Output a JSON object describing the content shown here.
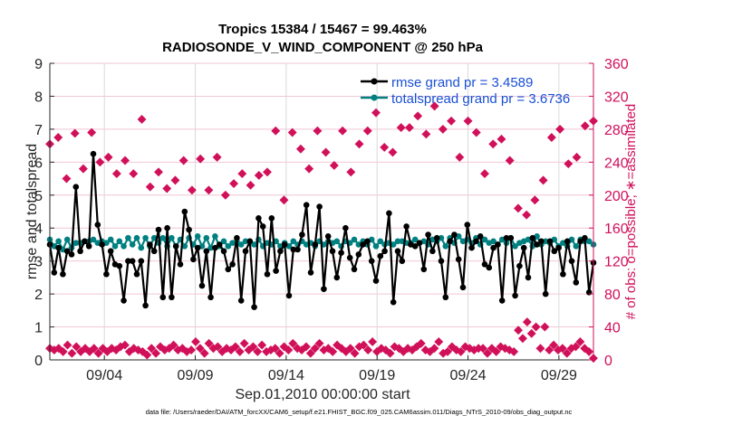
{
  "chart_data": {
    "type": "line",
    "title": "Tropics 15384 / 15467 = 99.463%",
    "subtitle": "RADIOSONDE_V_WIND_COMPONENT @ 250 hPa",
    "xlabel": "Sep.01,2010 00:00:00 start",
    "ylabel": "rmse and totalspread",
    "ylabel_right": "# of obs: o=possible; ∗=assimilated",
    "footnote": "data file: /Users/raeder/DAI/ATM_forcXX/CAM6_setup/f.e21.FHIST_BGC.f09_025.CAM6assim.011/Diags_NTrS_2010-09/obs_diag_output.nc",
    "x_unit": "days since Sep.01,2010 00:00",
    "xlim": [
      0,
      30
    ],
    "ylim": [
      0,
      9
    ],
    "ylim_right": [
      0,
      360
    ],
    "xticks": [
      {
        "day": 3,
        "label": "09/04"
      },
      {
        "day": 8,
        "label": "09/09"
      },
      {
        "day": 13,
        "label": "09/14"
      },
      {
        "day": 18,
        "label": "09/19"
      },
      {
        "day": 23,
        "label": "09/24"
      },
      {
        "day": 28,
        "label": "09/29"
      }
    ],
    "yticks": [
      "0",
      "1",
      "2",
      "3",
      "4",
      "5",
      "6",
      "7",
      "8",
      "9"
    ],
    "yticks_right": [
      "0",
      "40",
      "80",
      "120",
      "160",
      "200",
      "240",
      "280",
      "320",
      "360"
    ],
    "grid": true,
    "legend_position": "top-right",
    "colors": {
      "rmse": "#000000",
      "totalspread": "#008080",
      "obs": "#d1105a",
      "legend_text": "#1a4fd6",
      "grid_h": "#f2c6d6",
      "grid_v": "#d9d9d9"
    },
    "x": [
      0,
      0.5,
      1,
      1.5,
      2,
      2.5,
      3,
      3.5,
      4,
      4.5,
      5,
      5.5,
      6,
      6.5,
      7,
      7.5,
      8,
      8.5,
      9,
      9.5,
      10,
      10.5,
      11,
      11.5,
      12,
      12.5,
      13,
      13.5,
      14,
      14.5,
      15,
      15.5,
      16,
      16.5,
      17,
      17.5,
      18,
      18.5,
      19,
      19.5,
      20,
      20.5,
      21,
      21.5,
      22,
      22.5,
      23,
      23.5,
      24,
      24.5,
      25,
      25.5,
      26,
      26.5,
      27,
      27.5,
      28,
      28.5,
      29,
      29.5
    ],
    "series": [
      {
        "name": "rmse",
        "legend": "rmse grand pr = 3.4589",
        "values": [
          3.5,
          2.65,
          3.4,
          2.6,
          3.3,
          3.2,
          5.25,
          3.3,
          3.6,
          3.45,
          6.25,
          4.1,
          3.5,
          2.6,
          3.3,
          2.9,
          2.85,
          1.8,
          3.0,
          3.0,
          2.6,
          3.0,
          1.65,
          3.5,
          3.3,
          3.95,
          1.9,
          4.0,
          1.9,
          3.45,
          2.9,
          4.5,
          3.95,
          3.05,
          3.4,
          2.25,
          3.3,
          1.9,
          3.4,
          3.5,
          3.3,
          2.75,
          2.9,
          3.7,
          1.8,
          3.3,
          3.6,
          1.6,
          4.3,
          4.05,
          2.6,
          4.3,
          2.7,
          3.3,
          3.5,
          1.95,
          3.35,
          3.35,
          3.8,
          4.7,
          2.65,
          3.5,
          4.65,
          2.15,
          3.75,
          3.3,
          2.5,
          3.25,
          4.0,
          3.1,
          2.75,
          3.2,
          3.5,
          3.6,
          3.0,
          2.4,
          3.15,
          3.3,
          4.45,
          1.75,
          3.3,
          3.0,
          4.05,
          3.5,
          3.45,
          3.55,
          2.75,
          3.8,
          3.3,
          3.7,
          3.0,
          1.9,
          3.6,
          3.8,
          3.05,
          2.2,
          4.1,
          3.4,
          3.6,
          3.75,
          2.9,
          2.8,
          3.4,
          3.5,
          1.8,
          3.7,
          3.7,
          1.95,
          2.85,
          3.4,
          2.5,
          3.7,
          3.5,
          3.6,
          2.0,
          3.6,
          3.3,
          3.4,
          2.6,
          3.6,
          3.0,
          2.35,
          3.6,
          3.7,
          2.05,
          2.95
        ],
        "note": "rmse plotted at ~6-hourly cadence; values listed in time order"
      },
      {
        "name": "totalspread",
        "legend": "totalspread grand pr = 3.6736",
        "values": [
          3.65,
          3.45,
          3.6,
          3.35,
          3.65,
          3.4,
          3.55,
          3.55,
          3.6,
          3.6,
          3.65,
          3.55,
          3.6,
          3.55,
          3.65,
          3.45,
          3.6,
          3.45,
          3.7,
          3.5,
          3.7,
          3.4,
          3.7,
          3.45,
          3.7,
          3.55,
          3.7,
          3.45,
          3.7,
          3.45,
          3.65,
          3.45,
          3.7,
          3.5,
          3.75,
          3.45,
          3.7,
          3.4,
          3.75,
          3.45,
          3.6,
          3.45,
          3.55,
          3.6,
          3.5,
          3.6,
          3.6,
          3.5,
          3.65,
          3.45,
          3.55,
          3.5,
          3.6,
          3.45,
          3.55,
          3.45,
          3.6,
          3.5,
          3.6,
          3.5,
          3.55,
          3.45,
          3.6,
          3.5,
          3.6,
          3.55,
          3.6,
          3.45,
          3.6,
          3.55,
          3.65,
          3.5,
          3.6,
          3.5,
          3.65,
          3.45,
          3.6,
          3.5,
          3.55,
          3.5,
          3.6,
          3.6,
          3.55,
          3.55,
          3.65,
          3.55,
          3.6,
          3.5,
          3.65,
          3.6,
          3.7,
          3.45,
          3.7,
          3.55,
          3.75,
          3.6,
          3.65,
          3.55,
          3.7,
          3.5,
          3.65,
          3.55,
          3.6,
          3.5,
          3.65,
          3.55,
          3.7,
          3.45,
          3.55,
          3.6,
          3.65,
          3.45,
          3.75,
          3.5,
          3.6,
          3.55,
          3.65,
          3.45,
          3.55,
          3.45,
          3.65,
          3.45,
          3.65,
          3.6,
          3.6,
          3.5
        ]
      },
      {
        "name": "obs_possible",
        "axis": "right",
        "marker": "o",
        "values": [
          262,
          270,
          220,
          275,
          232,
          276,
          240,
          246,
          226,
          242,
          226,
          292,
          210,
          228,
          208,
          218,
          242,
          206,
          244,
          206,
          246,
          200,
          214,
          226,
          212,
          224,
          228,
          278,
          194,
          276,
          256,
          232,
          278,
          252,
          236,
          278,
          228,
          262,
          278,
          300,
          258,
          252,
          282,
          282,
          296,
          274,
          308,
          280,
          290,
          246,
          290,
          276,
          226,
          262,
          268,
          242,
          184,
          176,
          194,
          218,
          270,
          280,
          238,
          246,
          284,
          290
        ],
        "note": "possible obs counts at the upper cluster (approx.)"
      },
      {
        "name": "obs_assimilated",
        "axis": "right",
        "marker": "*",
        "values": [
          14,
          12,
          14,
          10,
          18,
          8,
          16,
          10,
          14,
          10,
          14,
          8,
          14,
          10,
          14,
          12,
          16,
          18,
          10,
          14,
          12,
          10,
          6,
          14,
          8,
          16,
          12,
          14,
          18,
          12,
          14,
          10,
          12,
          22,
          14,
          8,
          20,
          14,
          16,
          10,
          14,
          12,
          16,
          10,
          20,
          12,
          16,
          10,
          18,
          10,
          12,
          14,
          8,
          16,
          12,
          20,
          14,
          12,
          16,
          8,
          14,
          20,
          12,
          14,
          10,
          18,
          14,
          10,
          14,
          8,
          16,
          18,
          12,
          22,
          10,
          14,
          12,
          8,
          16,
          14,
          10,
          14,
          12,
          16,
          20,
          12,
          10,
          14,
          22,
          8,
          10,
          16,
          12,
          10,
          16,
          14,
          12,
          14,
          14,
          8,
          14,
          10,
          16,
          14,
          12,
          10,
          36,
          26,
          46,
          32,
          40,
          14,
          40,
          12,
          18,
          12,
          14,
          8,
          14,
          16,
          22,
          14,
          10,
          2
        ],
        "note": "assimilated obs counts along the bottom band (approx.)"
      }
    ]
  }
}
